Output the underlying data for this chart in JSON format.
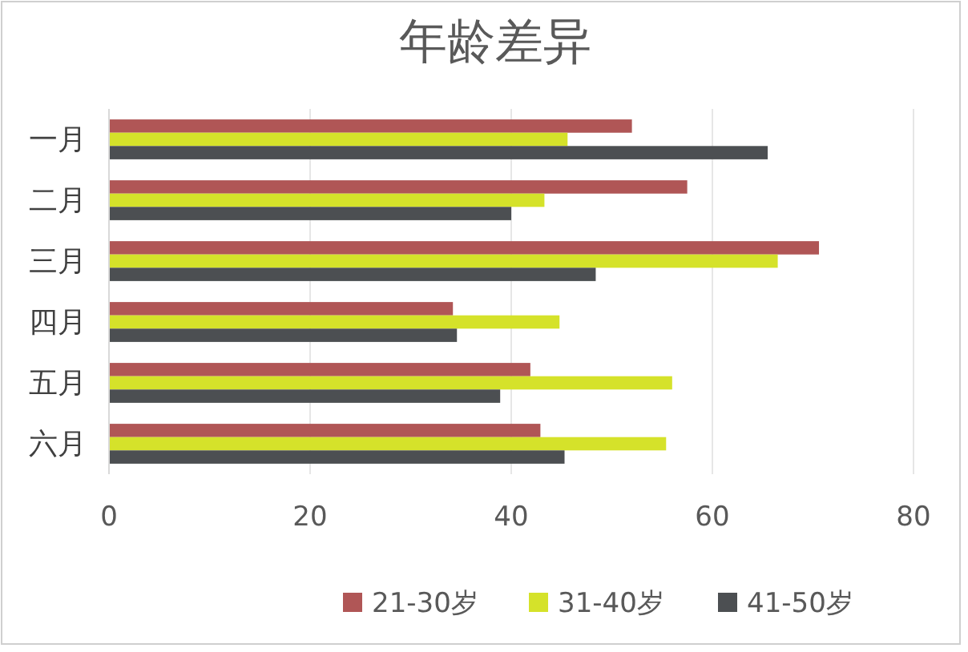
{
  "chart_data": {
    "type": "bar",
    "orientation": "horizontal",
    "title": "年龄差异",
    "categories": [
      "一月",
      "二月",
      "三月",
      "四月",
      "五月",
      "六月"
    ],
    "series": [
      {
        "name": "21-30岁",
        "color": "#b05656",
        "values": [
          52.0,
          57.5,
          70.6,
          34.2,
          41.9,
          42.9
        ]
      },
      {
        "name": "31-40岁",
        "color": "#d5e22a",
        "values": [
          45.6,
          43.3,
          66.5,
          44.8,
          56.0,
          55.4
        ]
      },
      {
        "name": "41-50岁",
        "color": "#4c4f52",
        "values": [
          65.5,
          40.0,
          48.4,
          34.6,
          38.9,
          45.3
        ]
      }
    ],
    "xlim": [
      0,
      80
    ],
    "xticks": [
      0,
      20,
      40,
      60,
      80
    ],
    "grid": "x",
    "legend": "bottom"
  }
}
